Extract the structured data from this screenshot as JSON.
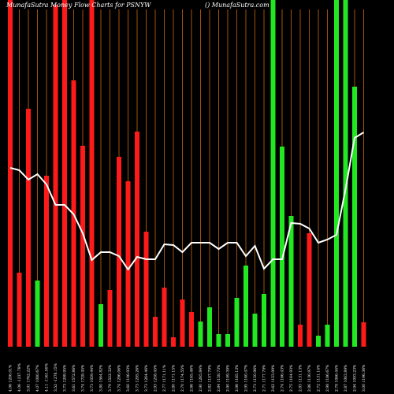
{
  "chart_data": {
    "type": "bar",
    "title": "MunafaSutra  Money Flow  Charts for PSNYW",
    "subtitle": "() MunafaSutra.com",
    "categories": [
      "4.06 1206.01%",
      "4.06 -1237.78%",
      "3.91 1762.22%",
      "4.07 1080.67%",
      "4.11 -1161.90%",
      "3.52 -1278.15%",
      "3.73 1298.95%",
      "3.61 1572.86%",
      "3.74 1728.45%",
      "3.73 1059.44%",
      "3.80 1564.82%",
      "3.79 1522.32%",
      "3.74 1296.06%",
      "3.60 1106.93%",
      "3.73 1295.26%",
      "3.73 1264.46%",
      "2.93 1258.45%",
      "2.77 1171.11%",
      "2.80 1171.15%",
      "2.70 1174.55%",
      "2.86 1165.46%",
      "2.90 1265.84%",
      "2.82 1157.79%",
      "2.84 1158.73%",
      "2.90 1199.39%",
      "2.96 1165.13%",
      "2.95 1160.47%",
      "2.73 1150.96%",
      "2.71 1177.79%",
      "2.62 1153.99%",
      "2.74 1166.43%",
      "2.75 1164.93%",
      "2.83 1131.13%",
      "2.86 1136.97%",
      "2.72 1131.14%",
      "2.98 1186.67%",
      "2.78 1066.44%",
      "2.87 1063.89%",
      "2.94 1093.23%",
      "3.00 1196.36%"
    ],
    "values": [
      440,
      94,
      302,
      84,
      217,
      434,
      440,
      338,
      255,
      440,
      54,
      72,
      241,
      210,
      273,
      146,
      38,
      75,
      12,
      60,
      44,
      32,
      50,
      16,
      16,
      62,
      103,
      42,
      67,
      440,
      254,
      166,
      28,
      144,
      14,
      28,
      440,
      440,
      330,
      31
    ],
    "colors": [
      "#ff1a1a",
      "#ff1a1a",
      "#ff1a1a",
      "#22e822",
      "#ff1a1a",
      "#ff1a1a",
      "#ff1a1a",
      "#ff1a1a",
      "#ff1a1a",
      "#ff1a1a",
      "#22e822",
      "#ff1a1a",
      "#ff1a1a",
      "#ff1a1a",
      "#ff1a1a",
      "#ff1a1a",
      "#ff1a1a",
      "#ff1a1a",
      "#ff1a1a",
      "#ff1a1a",
      "#ff1a1a",
      "#22e822",
      "#22e822",
      "#22e822",
      "#22e822",
      "#22e822",
      "#22e822",
      "#22e822",
      "#22e822",
      "#22e822",
      "#22e822",
      "#22e822",
      "#ff1a1a",
      "#ff1a1a",
      "#22e822",
      "#22e822",
      "#22e822",
      "#22e822",
      "#22e822",
      "#ff1a1a"
    ],
    "line": {
      "color": "#ffffff",
      "values": [
        227,
        224,
        212,
        219,
        206,
        180,
        180,
        168,
        144,
        110,
        120,
        120,
        115,
        98,
        114,
        111,
        111,
        130,
        129,
        120,
        132,
        132,
        132,
        124,
        132,
        132,
        115,
        128,
        99,
        111,
        111,
        157,
        156,
        150,
        132,
        136,
        142,
        200,
        265,
        272
      ]
    },
    "ylim": [
      0,
      440
    ],
    "guide_color": "#a0520a"
  }
}
